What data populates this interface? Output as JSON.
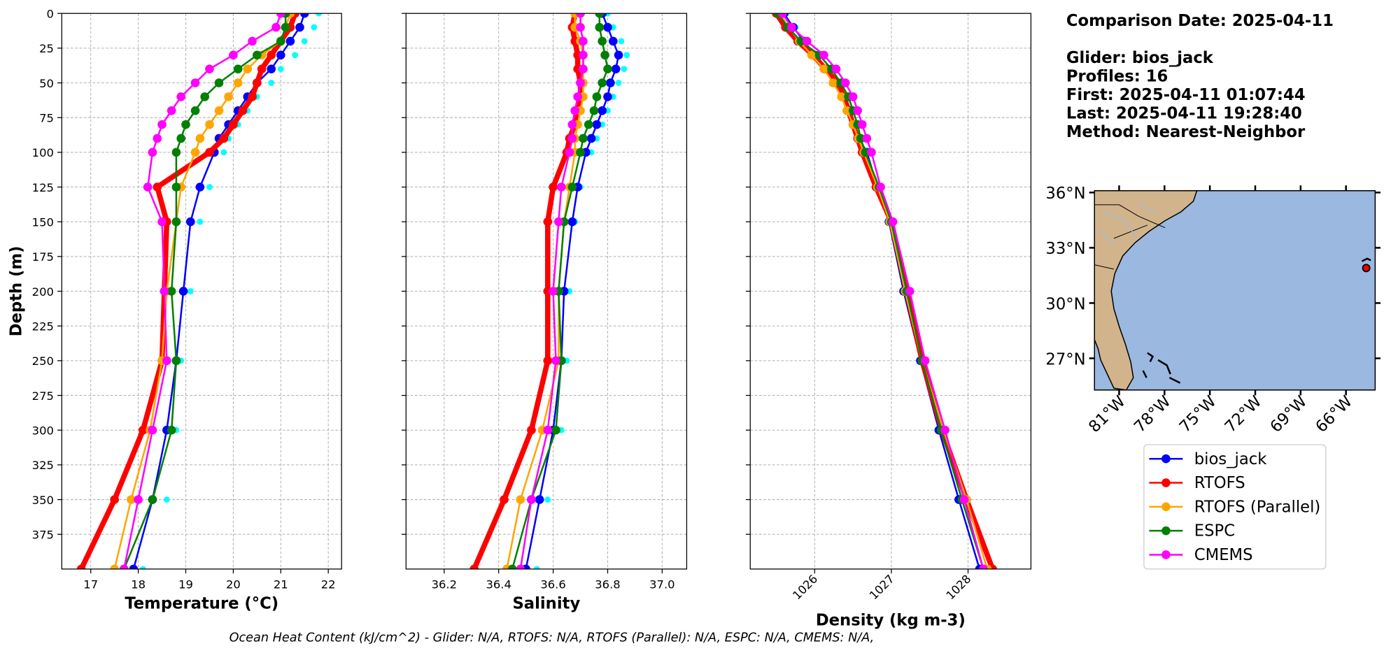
{
  "chart_data": [
    {
      "type": "line",
      "xlabel": "Temperature (°C)",
      "ylabel": "Depth (m)",
      "xlim": [
        16.39,
        22.28
      ],
      "xticks": [
        17,
        18,
        19,
        20,
        21,
        22
      ],
      "ylim": [
        0,
        400
      ],
      "y_inverted": true,
      "yticks": [
        0,
        25,
        50,
        75,
        100,
        125,
        150,
        175,
        200,
        225,
        250,
        275,
        300,
        325,
        350,
        375
      ],
      "ytick_labels": true,
      "grid": true,
      "y": [
        0,
        10,
        20,
        30,
        40,
        50,
        60,
        70,
        80,
        90,
        100,
        125,
        150,
        200,
        250,
        300,
        350,
        400
      ],
      "profiles": {
        "color": "#00ffff",
        "values": [
          21.8,
          21.7,
          21.5,
          21.3,
          21.0,
          20.8,
          20.5,
          20.3,
          20.1,
          19.9,
          19.8,
          19.5,
          19.3,
          19.1,
          18.9,
          18.8,
          18.6,
          18.1
        ]
      },
      "series": [
        {
          "name": "bios_jack",
          "color": "#0000ff",
          "linewidth": 2,
          "values": [
            21.5,
            21.4,
            21.2,
            21.0,
            20.8,
            20.5,
            20.3,
            20.1,
            19.9,
            19.7,
            19.6,
            19.3,
            19.1,
            18.95,
            18.8,
            18.6,
            18.3,
            17.9
          ]
        },
        {
          "name": "RTOFS",
          "color": "#ff0000",
          "linewidth": 6,
          "values": [
            21.3,
            21.2,
            21.0,
            20.8,
            20.6,
            20.5,
            20.4,
            20.2,
            20.0,
            19.8,
            19.5,
            18.4,
            18.6,
            18.55,
            18.5,
            18.1,
            17.5,
            16.8
          ]
        },
        {
          "name": "RTOFS (Parallel)",
          "color": "#ffa500",
          "linewidth": 2,
          "values": [
            21.2,
            21.1,
            21.0,
            20.6,
            20.3,
            20.1,
            19.9,
            19.7,
            19.5,
            19.3,
            19.2,
            18.9,
            18.8,
            18.6,
            18.5,
            18.25,
            17.85,
            17.5
          ]
        },
        {
          "name": "ESPC",
          "color": "#008000",
          "linewidth": 2,
          "values": [
            21.1,
            21.1,
            21.0,
            20.5,
            20.1,
            19.7,
            19.4,
            19.2,
            19.0,
            18.9,
            18.8,
            18.8,
            18.8,
            18.7,
            18.8,
            18.7,
            18.3,
            17.7
          ]
        },
        {
          "name": "CMEMS",
          "color": "#ff00ff",
          "linewidth": 2,
          "values": [
            21.0,
            20.9,
            20.4,
            20.0,
            19.5,
            19.2,
            18.9,
            18.7,
            18.5,
            18.4,
            18.3,
            18.2,
            18.5,
            18.55,
            18.6,
            18.3,
            18.0,
            17.7
          ]
        }
      ]
    },
    {
      "type": "line",
      "xlabel": "Salinity",
      "xlim": [
        36.06,
        37.09
      ],
      "xticks": [
        36.2,
        36.4,
        36.6,
        36.8,
        {
          "value": 37,
          "label": "37.0"
        }
      ],
      "ylim": [
        0,
        400
      ],
      "y_inverted": true,
      "yticks": [
        0,
        25,
        50,
        75,
        100,
        125,
        150,
        175,
        200,
        225,
        250,
        275,
        300,
        325,
        350,
        375
      ],
      "ytick_labels": false,
      "grid": true,
      "y": [
        0,
        10,
        20,
        30,
        40,
        50,
        60,
        70,
        80,
        90,
        100,
        125,
        150,
        200,
        250,
        300,
        350,
        400
      ],
      "profiles": {
        "color": "#00ffff",
        "values": [
          36.8,
          36.82,
          36.85,
          36.87,
          36.86,
          36.84,
          36.82,
          36.8,
          36.78,
          36.76,
          36.74,
          36.7,
          36.68,
          36.66,
          36.65,
          36.63,
          36.58,
          36.54
        ]
      },
      "series": [
        {
          "color": "#0000ff",
          "linewidth": 2,
          "values": [
            36.78,
            36.8,
            36.82,
            36.84,
            36.83,
            36.81,
            36.8,
            36.78,
            36.76,
            36.74,
            36.72,
            36.69,
            36.67,
            36.64,
            36.63,
            36.6,
            36.55,
            36.5
          ]
        },
        {
          "color": "#ff0000",
          "linewidth": 6,
          "values": [
            36.68,
            36.67,
            36.68,
            36.69,
            36.69,
            36.7,
            36.7,
            36.69,
            36.68,
            36.66,
            36.65,
            36.6,
            36.58,
            36.58,
            36.58,
            36.52,
            36.42,
            36.31
          ]
        },
        {
          "color": "#ffa500",
          "linewidth": 2,
          "values": [
            36.68,
            36.68,
            36.7,
            36.71,
            36.71,
            36.71,
            36.71,
            36.7,
            36.69,
            36.68,
            36.68,
            36.66,
            36.64,
            36.62,
            36.62,
            36.56,
            36.48,
            36.43
          ]
        },
        {
          "color": "#008000",
          "linewidth": 2,
          "values": [
            36.77,
            36.77,
            36.78,
            36.79,
            36.8,
            36.78,
            36.76,
            36.75,
            36.73,
            36.71,
            36.7,
            36.67,
            36.64,
            36.62,
            36.63,
            36.61,
            36.52,
            36.45
          ]
        },
        {
          "color": "#ff00ff",
          "linewidth": 2,
          "values": [
            36.7,
            36.7,
            36.71,
            36.71,
            36.71,
            36.7,
            36.69,
            36.68,
            36.67,
            36.67,
            36.66,
            36.63,
            36.62,
            36.6,
            36.61,
            36.58,
            36.52,
            36.48
          ]
        }
      ]
    },
    {
      "type": "line",
      "xlabel": "Density (kg m-3)",
      "xtick_rotation": 45,
      "xlim": [
        1025.16,
        1028.82
      ],
      "xticks": [
        1026,
        1027,
        1028
      ],
      "ylim": [
        0,
        400
      ],
      "y_inverted": true,
      "yticks": [
        0,
        25,
        50,
        75,
        100,
        125,
        150,
        175,
        200,
        225,
        250,
        275,
        300,
        325,
        350,
        375
      ],
      "ytick_labels": false,
      "grid": true,
      "y": [
        0,
        10,
        20,
        30,
        40,
        50,
        60,
        70,
        80,
        90,
        100,
        125,
        150,
        200,
        250,
        300,
        350,
        400
      ],
      "profiles": {
        "color": "#00ffff",
        "values": [
          1025.63,
          1025.75,
          1025.89,
          1026.03,
          1026.2,
          1026.33,
          1026.43,
          1026.5,
          1026.55,
          1026.61,
          1026.71,
          1026.85,
          1027.0,
          1027.19,
          1027.41,
          1027.65,
          1027.91,
          1028.18
        ]
      },
      "series": [
        {
          "color": "#0000ff",
          "linewidth": 2,
          "values": [
            1025.6,
            1025.72,
            1025.86,
            1026.0,
            1026.17,
            1026.3,
            1026.4,
            1026.47,
            1026.52,
            1026.58,
            1026.68,
            1026.82,
            1026.97,
            1027.16,
            1027.38,
            1027.62,
            1027.88,
            1028.15
          ]
        },
        {
          "color": "#ff0000",
          "linewidth": 6,
          "values": [
            1025.5,
            1025.62,
            1025.78,
            1025.98,
            1026.14,
            1026.3,
            1026.38,
            1026.44,
            1026.5,
            1026.56,
            1026.62,
            1026.8,
            1027.0,
            1027.2,
            1027.4,
            1027.66,
            1027.98,
            1028.32
          ]
        },
        {
          "color": "#ffa500",
          "linewidth": 2,
          "values": [
            1025.55,
            1025.66,
            1025.8,
            1025.96,
            1026.12,
            1026.24,
            1026.35,
            1026.42,
            1026.5,
            1026.57,
            1026.64,
            1026.82,
            1026.98,
            1027.18,
            1027.4,
            1027.68,
            1027.98,
            1028.25
          ]
        },
        {
          "color": "#008000",
          "linewidth": 2,
          "values": [
            1025.52,
            1025.65,
            1025.82,
            1026.06,
            1026.22,
            1026.34,
            1026.44,
            1026.5,
            1026.56,
            1026.6,
            1026.66,
            1026.84,
            1027.0,
            1027.2,
            1027.4,
            1027.65,
            1027.92,
            1028.2
          ]
        },
        {
          "color": "#ff00ff",
          "linewidth": 2,
          "values": [
            1025.58,
            1025.7,
            1025.9,
            1026.12,
            1026.28,
            1026.4,
            1026.5,
            1026.56,
            1026.62,
            1026.68,
            1026.74,
            1026.86,
            1027.02,
            1027.24,
            1027.44,
            1027.7,
            1027.95,
            1028.2
          ]
        }
      ]
    },
    {
      "type": "map",
      "xlim": [
        -82.63,
        -64.07
      ],
      "ylim": [
        25.28,
        36.1
      ],
      "xticks": [
        {
          "value": -81,
          "label": "81°W"
        },
        {
          "value": -78,
          "label": "78°W"
        },
        {
          "value": -75,
          "label": "75°W"
        },
        {
          "value": -72,
          "label": "72°W"
        },
        {
          "value": -69,
          "label": "69°W"
        },
        {
          "value": -66,
          "label": "66°W"
        }
      ],
      "yticks": [
        {
          "value": 36,
          "label": "36°N"
        },
        {
          "value": 33,
          "label": "33°N"
        },
        {
          "value": 30,
          "label": "30°N"
        },
        {
          "value": 27,
          "label": "27°N"
        }
      ],
      "points": {
        "color": "#ff0000",
        "x": [
          -64.66
        ],
        "y": [
          31.9
        ]
      }
    }
  ],
  "info": {
    "title": "Comparison Date: 2025-04-11",
    "lines": [
      "Glider: bios_jack",
      "Profiles: 16",
      "First: 2025-04-11 01:07:44",
      "Last: 2025-04-11 19:28:40",
      "Method: Nearest-Neighbor"
    ]
  },
  "footer": "Ocean Heat Content (kJ/cm^2) - Glider: N/A,  RTOFS: N/A,  RTOFS (Parallel): N/A,  ESPC: N/A,  CMEMS: N/A,"
}
